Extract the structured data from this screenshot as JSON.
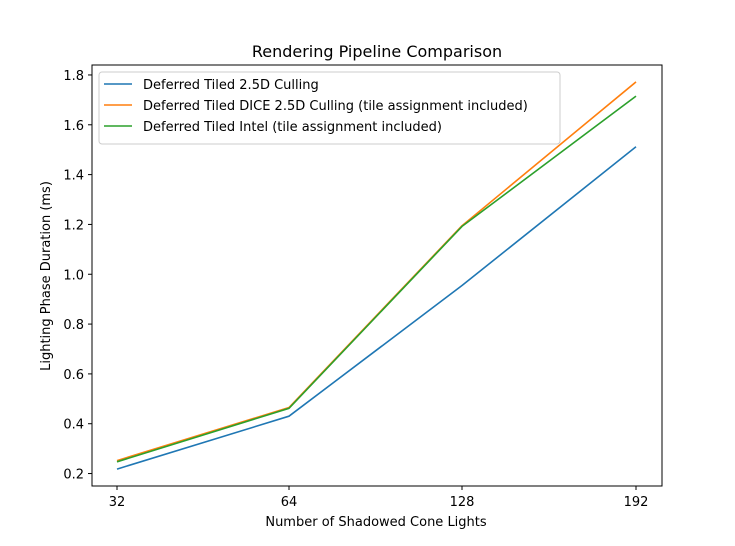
{
  "chart_data": {
    "type": "line",
    "title": "Rendering Pipeline Comparison",
    "xlabel": "Number of Shadowed Cone Lights",
    "ylabel": "Lighting Phase Duration (ms)",
    "x": [
      32,
      64,
      128,
      192
    ],
    "x_ticks": [
      "32",
      "64",
      "128",
      "192"
    ],
    "y_ticks": [
      0.2,
      0.4,
      0.6,
      0.8,
      1.0,
      1.2,
      1.4,
      1.6,
      1.8
    ],
    "ylim": [
      0.15,
      1.84
    ],
    "grid": false,
    "legend_position": "top-left",
    "series": [
      {
        "name": "Deferred Tiled 2.5D Culling",
        "color": "#1f77b4",
        "values": [
          0.218,
          0.43,
          0.955,
          1.512
        ]
      },
      {
        "name": "Deferred Tiled DICE 2.5D Culling (tile assignment included)",
        "color": "#ff7f0e",
        "values": [
          0.252,
          0.465,
          1.195,
          1.772
        ]
      },
      {
        "name": "Deferred Tiled Intel (tile assignment included)",
        "color": "#2ca02c",
        "values": [
          0.247,
          0.462,
          1.192,
          1.715
        ]
      }
    ]
  }
}
